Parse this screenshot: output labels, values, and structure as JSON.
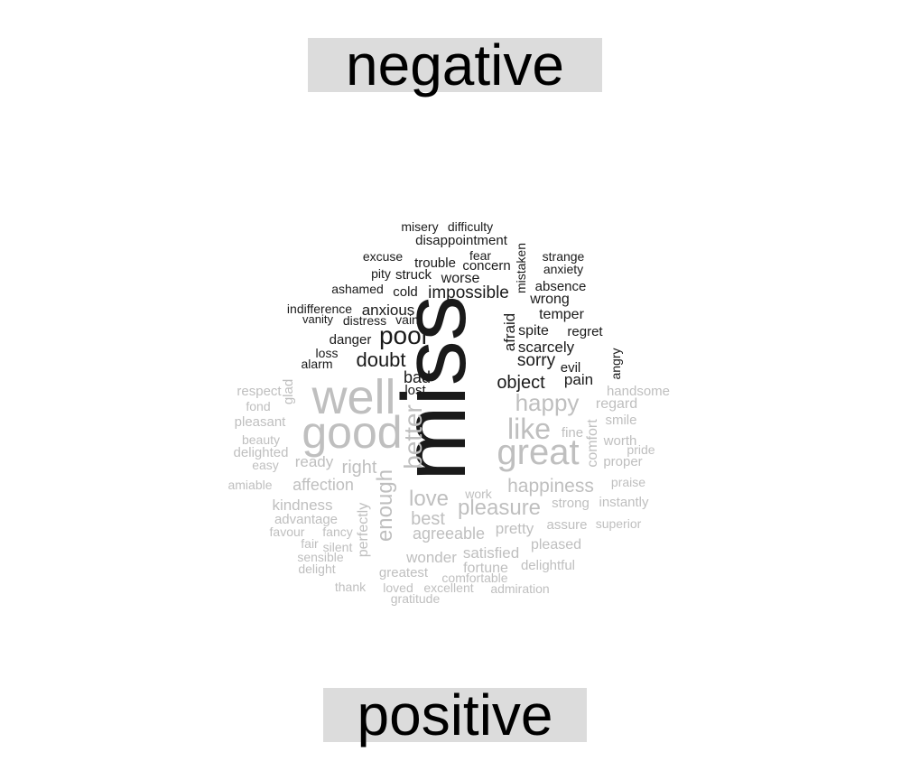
{
  "chart_data": {
    "type": "comparison_wordcloud",
    "groups": [
      {
        "name": "negative",
        "color": "#1a1a1a",
        "words": [
          {
            "word": "miss",
            "size": 10
          },
          {
            "word": "poor",
            "size": 3
          },
          {
            "word": "impossible",
            "size": 2
          },
          {
            "word": "doubt",
            "size": 2.2
          },
          {
            "word": "anxious",
            "size": 1.7
          },
          {
            "word": "afraid",
            "size": 1.7
          },
          {
            "word": "scarcely",
            "size": 1.7
          },
          {
            "word": "sorry",
            "size": 1.8
          },
          {
            "word": "object",
            "size": 1.9
          },
          {
            "word": "bad",
            "size": 1.7
          },
          {
            "word": "spite",
            "size": 1.6
          },
          {
            "word": "worse",
            "size": 1.5
          },
          {
            "word": "wrong",
            "size": 1.5
          },
          {
            "word": "absence",
            "size": 1.4
          },
          {
            "word": "temper",
            "size": 1.4
          },
          {
            "word": "regret",
            "size": 1.4
          },
          {
            "word": "pain",
            "size": 1.5
          },
          {
            "word": "evil",
            "size": 1.4
          },
          {
            "word": "lost",
            "size": 1.4
          },
          {
            "word": "danger",
            "size": 1.4
          },
          {
            "word": "cold",
            "size": 1.4
          },
          {
            "word": "trouble",
            "size": 1.4
          },
          {
            "word": "concern",
            "size": 1.4
          },
          {
            "word": "fear",
            "size": 1.3
          },
          {
            "word": "struck",
            "size": 1.3
          },
          {
            "word": "ashamed",
            "size": 1.3
          },
          {
            "word": "distress",
            "size": 1.3
          },
          {
            "word": "excuse",
            "size": 1.3
          },
          {
            "word": "strange",
            "size": 1.2
          },
          {
            "word": "anxiety",
            "size": 1.2
          },
          {
            "word": "mistaken",
            "size": 1.2
          },
          {
            "word": "angry",
            "size": 1.2
          },
          {
            "word": "disappointment",
            "size": 1.3
          },
          {
            "word": "difficulty",
            "size": 1.2
          },
          {
            "word": "misery",
            "size": 1.2
          },
          {
            "word": "pity",
            "size": 1.2
          },
          {
            "word": "indifference",
            "size": 1.2
          },
          {
            "word": "vanity",
            "size": 1.1
          },
          {
            "word": "vain",
            "size": 1.2
          },
          {
            "word": "loss",
            "size": 1.2
          },
          {
            "word": "alarm",
            "size": 1.2
          }
        ]
      },
      {
        "name": "positive",
        "color": "#bfbfbf",
        "words": [
          {
            "word": "well",
            "size": 6
          },
          {
            "word": "good",
            "size": 5.5
          },
          {
            "word": "great",
            "size": 4
          },
          {
            "word": "better",
            "size": 3
          },
          {
            "word": "like",
            "size": 3
          },
          {
            "word": "happy",
            "size": 2.6
          },
          {
            "word": "enough",
            "size": 2.4
          },
          {
            "word": "pleasure",
            "size": 2.3
          },
          {
            "word": "happiness",
            "size": 2.1
          },
          {
            "word": "love",
            "size": 2.2
          },
          {
            "word": "best",
            "size": 2
          },
          {
            "word": "right",
            "size": 2
          },
          {
            "word": "affection",
            "size": 1.8
          },
          {
            "word": "agreeable",
            "size": 1.8
          },
          {
            "word": "comfort",
            "size": 1.6
          },
          {
            "word": "perfectly",
            "size": 1.5
          },
          {
            "word": "pretty",
            "size": 1.6
          },
          {
            "word": "satisfied",
            "size": 1.6
          },
          {
            "word": "wonder",
            "size": 1.6
          },
          {
            "word": "ready",
            "size": 1.6
          },
          {
            "word": "kindness",
            "size": 1.6
          },
          {
            "word": "fortune",
            "size": 1.6
          },
          {
            "word": "pleased",
            "size": 1.5
          },
          {
            "word": "strong",
            "size": 1.4
          },
          {
            "word": "assure",
            "size": 1.4
          },
          {
            "word": "handsome",
            "size": 1.4
          },
          {
            "word": "regard",
            "size": 1.4
          },
          {
            "word": "fine",
            "size": 1.4
          },
          {
            "word": "smile",
            "size": 1.3
          },
          {
            "word": "worth",
            "size": 1.3
          },
          {
            "word": "glad",
            "size": 1.3
          },
          {
            "word": "respect",
            "size": 1.3
          },
          {
            "word": "advantage",
            "size": 1.3
          },
          {
            "word": "greatest",
            "size": 1.3
          },
          {
            "word": "instantly",
            "size": 1.3
          },
          {
            "word": "delightful",
            "size": 1.3
          },
          {
            "word": "proper",
            "size": 1.3
          },
          {
            "word": "pleasant",
            "size": 1.3
          },
          {
            "word": "beauty",
            "size": 1.3
          },
          {
            "word": "delighted",
            "size": 1.3
          },
          {
            "word": "fond",
            "size": 1.2
          },
          {
            "word": "easy",
            "size": 1.2
          },
          {
            "word": "amiable",
            "size": 1.2
          },
          {
            "word": "favour",
            "size": 1.2
          },
          {
            "word": "fancy",
            "size": 1.2
          },
          {
            "word": "fair",
            "size": 1.2
          },
          {
            "word": "silent",
            "size": 1.2
          },
          {
            "word": "sensible",
            "size": 1.2
          },
          {
            "word": "delight",
            "size": 1.2
          },
          {
            "word": "thank",
            "size": 1.2
          },
          {
            "word": "loved",
            "size": 1.2
          },
          {
            "word": "excellent",
            "size": 1.2
          },
          {
            "word": "gratitude",
            "size": 1.2
          },
          {
            "word": "comfortable",
            "size": 1.2
          },
          {
            "word": "admiration",
            "size": 1.2
          },
          {
            "word": "work",
            "size": 1.2
          },
          {
            "word": "superior",
            "size": 1.2
          },
          {
            "word": "praise",
            "size": 1.2
          },
          {
            "word": "pride",
            "size": 1.2
          }
        ]
      }
    ]
  }
}
